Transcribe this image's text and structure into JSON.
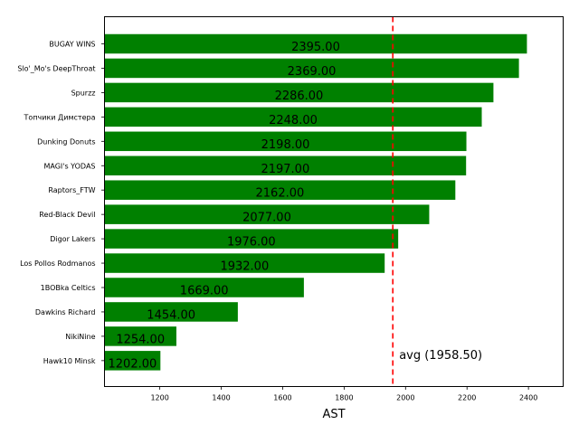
{
  "chart_data": {
    "type": "bar",
    "orientation": "horizontal",
    "categories": [
      "BUGAY WINS",
      "Slo'_Mo's DeepThroat",
      "Spurzz",
      "Топчики Димстера",
      "Dunking Donuts",
      "MAGI's YODAS",
      "Raptors_FTW",
      "Red-Black Devil",
      "Digor Lakers",
      "Los Pollos Rodmanos",
      "1BOBka Celtics",
      "Dawkins Richard",
      "NikiNine",
      "Hawk10 Minsk"
    ],
    "values": [
      2395,
      2369,
      2286,
      2248,
      2198,
      2197,
      2162,
      2077,
      1976,
      1932,
      1669,
      1454,
      1254,
      1202
    ],
    "value_labels": [
      "2395.00",
      "2369.00",
      "2286.00",
      "2248.00",
      "2198.00",
      "2197.00",
      "2162.00",
      "2077.00",
      "1976.00",
      "1932.00",
      "1669.00",
      "1454.00",
      "1254.00",
      "1202.00"
    ],
    "average": 1958.5,
    "average_label": "avg (1958.50)",
    "xlabel": "AST",
    "ylabel": "",
    "title": "",
    "xlim": [
      1020,
      2513
    ],
    "xticks": [
      1200,
      1400,
      1600,
      1800,
      2000,
      2200,
      2400
    ],
    "colors": {
      "bar": "#008000",
      "avg_line": "#ff0000"
    },
    "grid": false
  }
}
